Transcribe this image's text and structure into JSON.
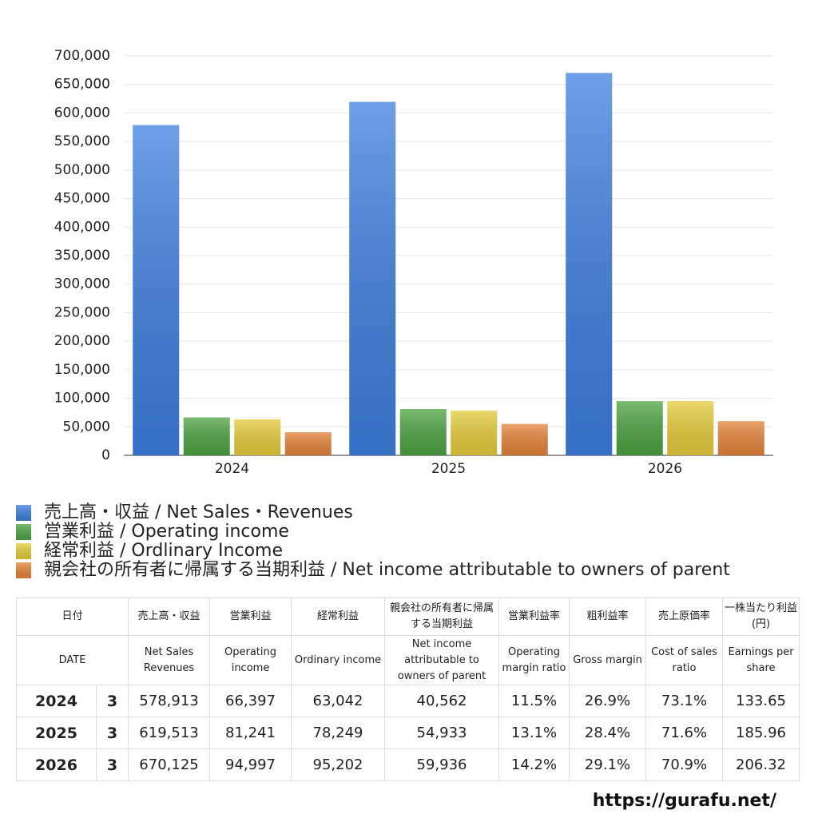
{
  "chart_data": {
    "type": "bar",
    "categories": [
      "2024",
      "2025",
      "2026"
    ],
    "series": [
      {
        "name": "売上高・収益 / Net Sales・Revenues",
        "color": "#3f7fe0",
        "values": [
          578913,
          619513,
          670125
        ]
      },
      {
        "name": "営業利益 / Operating income",
        "color": "#4ea343",
        "values": [
          66397,
          81241,
          94997
        ]
      },
      {
        "name": "経常利益 / Ordlinary Income",
        "color": "#e6cc3c",
        "values": [
          63042,
          78249,
          95202
        ]
      },
      {
        "name": "親会社の所有者に帰属する当期利益 / Net income attributable to owners of parent",
        "color": "#e5843a",
        "values": [
          40562,
          54933,
          59936
        ]
      }
    ],
    "ylim": [
      0,
      700000
    ],
    "yticks": [
      0,
      {
        "value": 50000,
        "label": "50,000"
      },
      {
        "value": 100000,
        "label": "100,000"
      },
      {
        "value": 150000,
        "label": "150,000"
      },
      {
        "value": 200000,
        "label": "200,000"
      },
      {
        "value": 250000,
        "label": "250,000"
      },
      {
        "value": 300000,
        "label": "300,000"
      },
      {
        "value": 350000,
        "label": "350,000"
      },
      {
        "value": 400000,
        "label": "400,000"
      },
      {
        "value": 450000,
        "label": "450,000"
      },
      {
        "value": 500000,
        "label": "500,000"
      },
      {
        "value": 550000,
        "label": "550,000"
      },
      {
        "value": 600000,
        "label": "600,000"
      },
      {
        "value": 650000,
        "label": "650,000"
      },
      {
        "value": 700000,
        "label": "700,000"
      }
    ],
    "grid": true
  },
  "table": {
    "header": [
      [
        "日付",
        "売上高・収益",
        "営業利益",
        "経常利益",
        "親会社の所有者に帰属する当期利益",
        "営業利益率",
        "粗利益率",
        "売上原価率",
        "一株当たり利益(円)"
      ],
      [
        "DATE",
        "Net Sales Revenues",
        "Operating income",
        "Ordinary income",
        "Net income attributable to owners of parent",
        "Operating margin ratio",
        "Gross margin",
        "Cost of sales ratio",
        "Earnings per share"
      ]
    ],
    "rows": [
      [
        "2024",
        "3",
        "578,913",
        "66,397",
        "63,042",
        "40,562",
        "11.5%",
        "26.9%",
        "73.1%",
        "133.65"
      ],
      [
        "2025",
        "3",
        "619,513",
        "81,241",
        "78,249",
        "54,933",
        "13.1%",
        "28.4%",
        "71.6%",
        "185.96"
      ],
      [
        "2026",
        "3",
        "670,125",
        "94,997",
        "95,202",
        "59,936",
        "14.2%",
        "29.1%",
        "70.9%",
        "206.32"
      ]
    ]
  },
  "footer": "https://gurafu.net/"
}
